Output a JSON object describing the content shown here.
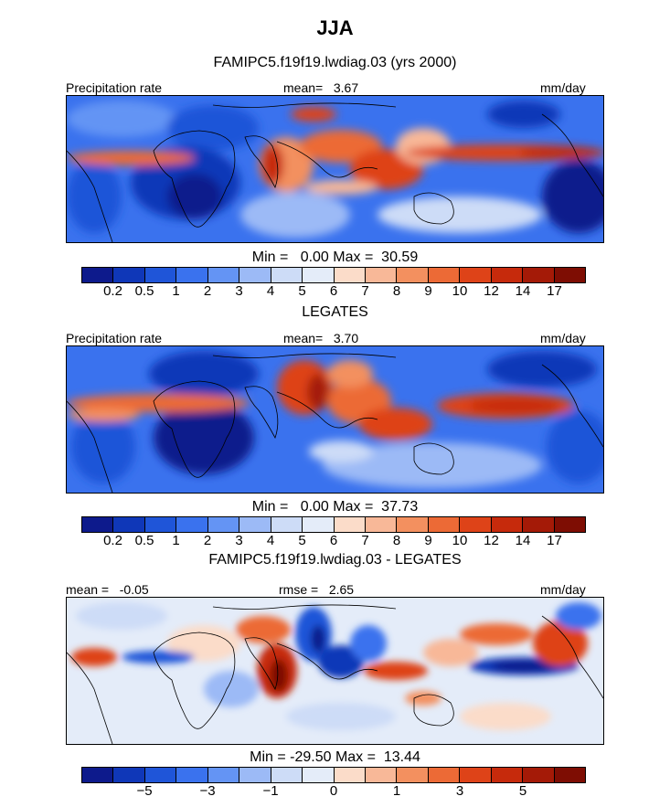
{
  "title": "JJA",
  "panels": [
    {
      "id": "model",
      "heading": "FAMIPC5.f19f19.lwdiag.03 (yrs 2000)",
      "left_label": "Precipitation rate",
      "center_label": "mean=   3.67",
      "right_label": "mm/day",
      "min_max_text": "Min =   0.00 Max =  30.59",
      "colorbar": {
        "colors": [
          "#0d1a8c",
          "#0f37b8",
          "#1f55d8",
          "#3a72ee",
          "#6494f4",
          "#9cbaf6",
          "#cddcf7",
          "#e4ecf9",
          "#fbdcc9",
          "#f8b898",
          "#f3905f",
          "#ec6a36",
          "#de4318",
          "#c62a0c",
          "#a41a07",
          "#7e0d03"
        ],
        "labels": [
          "0.2",
          "0.5",
          "1",
          "2",
          "3",
          "4",
          "5",
          "6",
          "7",
          "8",
          "9",
          "10",
          "12",
          "14",
          "17"
        ]
      }
    },
    {
      "id": "obs",
      "heading": "LEGATES",
      "left_label": "Precipitation rate",
      "center_label": "mean=   3.70",
      "right_label": "mm/day",
      "min_max_text": "Min =   0.00 Max =  37.73",
      "colorbar": {
        "colors": [
          "#0d1a8c",
          "#0f37b8",
          "#1f55d8",
          "#3a72ee",
          "#6494f4",
          "#9cbaf6",
          "#cddcf7",
          "#e4ecf9",
          "#fbdcc9",
          "#f8b898",
          "#f3905f",
          "#ec6a36",
          "#de4318",
          "#c62a0c",
          "#a41a07",
          "#7e0d03"
        ],
        "labels": [
          "0.2",
          "0.5",
          "1",
          "2",
          "3",
          "4",
          "5",
          "6",
          "7",
          "8",
          "9",
          "10",
          "12",
          "14",
          "17"
        ]
      }
    },
    {
      "id": "diff",
      "heading": "FAMIPC5.f19f19.lwdiag.03 - LEGATES",
      "left_label": "mean =   -0.05",
      "center_label": "rmse =   2.65",
      "right_label": "mm/day",
      "min_max_text": "Min = -29.50 Max =  13.44",
      "colorbar": {
        "colors": [
          "#0d1a8c",
          "#0f37b8",
          "#1f55d8",
          "#3a72ee",
          "#6494f4",
          "#9cbaf6",
          "#cddcf7",
          "#e4ecf9",
          "#fbdcc9",
          "#f8b898",
          "#f3905f",
          "#ec6a36",
          "#de4318",
          "#c62a0c",
          "#a41a07",
          "#7e0d03"
        ],
        "labels": [
          "-5",
          "-3",
          "-1",
          "0",
          "1",
          "3",
          "5"
        ]
      }
    }
  ],
  "chart_data": [
    {
      "type": "heatmap",
      "title": "FAMIPC5.f19f19.lwdiag.03 (yrs 2000)",
      "variable": "Precipitation rate",
      "units": "mm/day",
      "season": "JJA",
      "mean": 3.67,
      "min": 0.0,
      "max": 30.59,
      "contour_levels": [
        0.2,
        0.5,
        1,
        2,
        3,
        4,
        5,
        6,
        7,
        8,
        9,
        10,
        12,
        14,
        17
      ]
    },
    {
      "type": "heatmap",
      "title": "LEGATES",
      "variable": "Precipitation rate",
      "units": "mm/day",
      "season": "JJA",
      "mean": 3.7,
      "min": 0.0,
      "max": 37.73,
      "contour_levels": [
        0.2,
        0.5,
        1,
        2,
        3,
        4,
        5,
        6,
        7,
        8,
        9,
        10,
        12,
        14,
        17
      ]
    },
    {
      "type": "heatmap",
      "title": "FAMIPC5.f19f19.lwdiag.03 - LEGATES",
      "units": "mm/day",
      "season": "JJA",
      "mean": -0.05,
      "rmse": 2.65,
      "min": -29.5,
      "max": 13.44,
      "contour_levels": [
        -5,
        -3,
        -1,
        0,
        1,
        3,
        5
      ]
    }
  ]
}
